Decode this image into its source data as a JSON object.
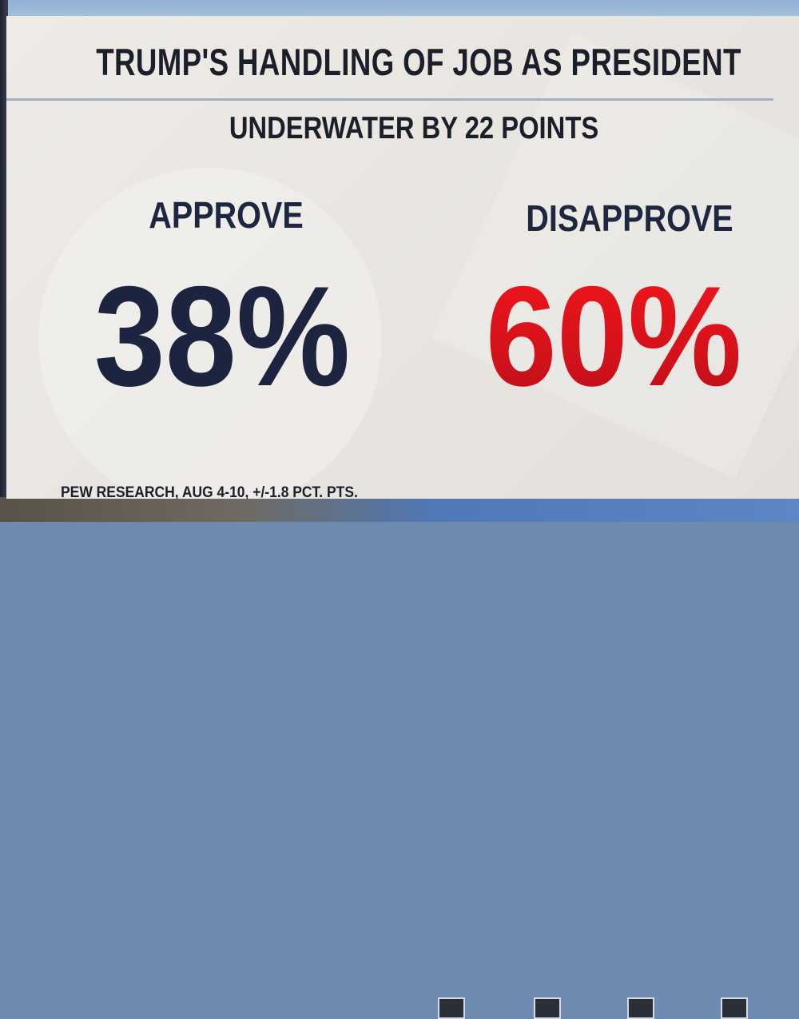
{
  "graphic": {
    "title": "TRUMP'S HANDLING OF JOB AS PRESIDENT",
    "subtitle": "UNDERWATER BY 22 POINTS",
    "approve": {
      "label": "APPROVE",
      "value": "38%",
      "color": "#1c2440"
    },
    "disapprove": {
      "label": "DISAPPROVE",
      "value": "60%",
      "color": "#e1141c"
    },
    "source": "PEW RESEARCH, AUG 4-10, +/-1.8 PCT. PTS."
  }
}
